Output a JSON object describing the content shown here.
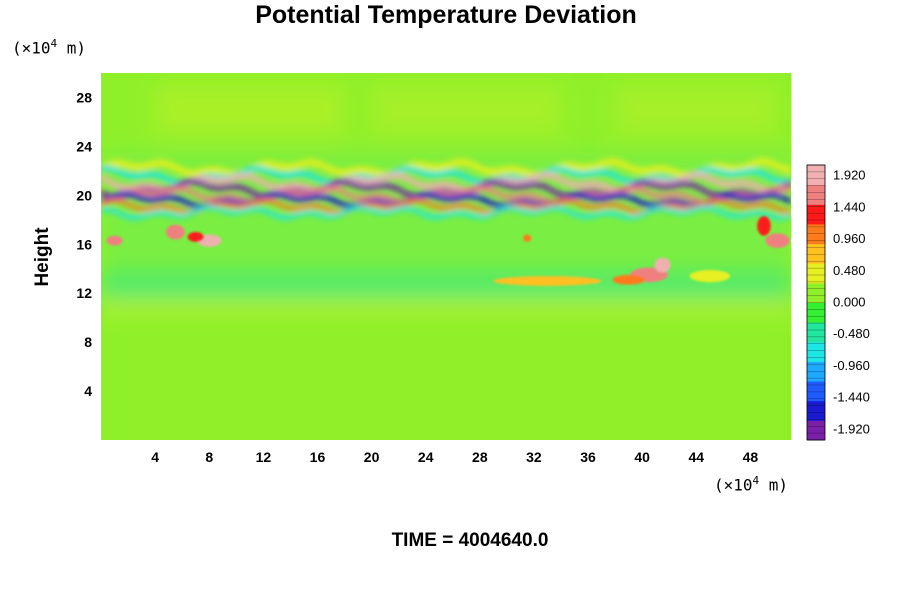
{
  "chart_data": {
    "type": "heatmap",
    "title": "Potential Temperature Deviation",
    "ylabel": "Height",
    "xunit_prefix": "(×10",
    "xunit_exp": "4",
    "xunit_suffix": " m)",
    "yunit_prefix": "(×10",
    "yunit_exp": "4",
    "yunit_suffix": " m)",
    "xlim": [
      0,
      51
    ],
    "ylim": [
      0,
      30
    ],
    "xticks": [
      4,
      8,
      12,
      16,
      20,
      24,
      28,
      32,
      36,
      40,
      44,
      48
    ],
    "yticks": [
      4,
      8,
      12,
      16,
      20,
      24,
      28
    ],
    "colorbar": {
      "min": -2.08,
      "max": 2.08,
      "ticks": [
        1.92,
        1.44,
        0.96,
        0.48,
        0.0,
        -0.48,
        -0.96,
        -1.44,
        -1.92
      ],
      "tick_labels": [
        "1.920",
        "1.440",
        "0.960",
        "0.480",
        "0.000",
        "-0.480",
        "-0.960",
        "-1.440",
        "-1.920"
      ],
      "colors": [
        "#7a1fa8",
        "#1a1ad0",
        "#1e5cff",
        "#1fa8ff",
        "#1fe6e6",
        "#20e6a0",
        "#33f033",
        "#8ff02a",
        "#e6f020",
        "#ffc020",
        "#ff7a1a",
        "#ff1a1a",
        "#f08080",
        "#f0b0b0"
      ]
    },
    "bands": [
      {
        "feature": "upper wave layer",
        "y_range": [
          19,
          23
        ],
        "values": "alternating -1.9 to 1.9"
      },
      {
        "feature": "weak negative layer",
        "y_range": [
          11,
          18
        ],
        "values": "about -0.5 to 0.5"
      },
      {
        "feature": "local maxima",
        "locations": [
          [
            5.5,
            17
          ],
          [
            8,
            16.3
          ],
          [
            41,
            13.5
          ],
          [
            1,
            16.3
          ],
          [
            50,
            16.3
          ]
        ],
        "values": "about 1.0 to 1.9"
      },
      {
        "feature": "background",
        "y_range": [
          0,
          11
        ],
        "values": "about 0"
      }
    ],
    "time_label": "TIME = 4004640.0"
  }
}
